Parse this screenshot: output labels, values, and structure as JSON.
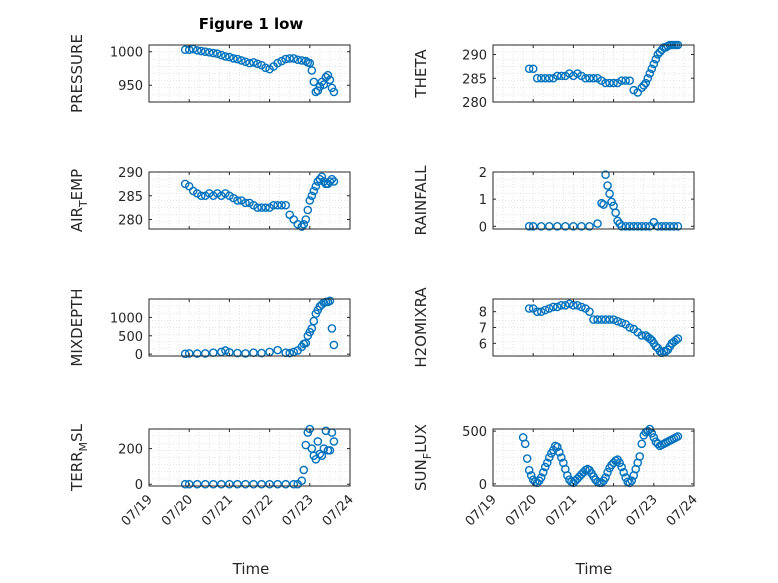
{
  "title": "Figure 1 low",
  "marker_color": "#0072BD",
  "xaxis": {
    "type": "date",
    "range": [
      "07/19",
      "07/24"
    ],
    "ticks": [
      "07/19",
      "07/20",
      "07/21",
      "07/22",
      "07/23",
      "07/24"
    ],
    "label": "Time"
  },
  "chart_data": [
    {
      "type": "scatter",
      "title": "Figure 1 low",
      "ylabel": "PRESSURE",
      "ylim": [
        925,
        1010
      ],
      "yticks": [
        950,
        1000
      ],
      "x": [
        19.9,
        20.0,
        20.1,
        20.2,
        20.3,
        20.4,
        20.5,
        20.6,
        20.7,
        20.8,
        20.9,
        21.0,
        21.1,
        21.2,
        21.3,
        21.4,
        21.5,
        21.6,
        21.7,
        21.8,
        21.9,
        22.0,
        22.1,
        22.2,
        22.3,
        22.4,
        22.5,
        22.6,
        22.7,
        22.8,
        22.9,
        22.95,
        23.0,
        23.05,
        23.1,
        23.15,
        23.2,
        23.25,
        23.3,
        23.35,
        23.4,
        23.45,
        23.5,
        23.55,
        23.6
      ],
      "y": [
        1003,
        1003,
        1004,
        1002,
        1001,
        1000,
        999,
        998,
        997,
        995,
        993,
        992,
        990,
        989,
        987,
        985,
        983,
        984,
        982,
        980,
        976,
        974,
        978,
        983,
        986,
        989,
        990,
        990,
        988,
        987,
        986,
        984,
        983,
        972,
        955,
        940,
        942,
        948,
        955,
        951,
        962,
        965,
        958,
        946,
        940
      ]
    },
    {
      "type": "scatter",
      "ylabel": "THETA",
      "ylim": [
        280,
        292
      ],
      "yticks": [
        280,
        285,
        290
      ],
      "x": [
        19.9,
        20.0,
        20.1,
        20.2,
        20.3,
        20.4,
        20.5,
        20.6,
        20.7,
        20.8,
        20.9,
        21.0,
        21.1,
        21.2,
        21.3,
        21.4,
        21.5,
        21.6,
        21.7,
        21.8,
        21.9,
        22.0,
        22.1,
        22.2,
        22.3,
        22.4,
        22.5,
        22.6,
        22.7,
        22.75,
        22.8,
        22.85,
        22.9,
        22.95,
        23.0,
        23.05,
        23.1,
        23.15,
        23.2,
        23.25,
        23.3,
        23.35,
        23.4,
        23.45,
        23.5,
        23.55,
        23.6
      ],
      "y": [
        287,
        287,
        285,
        285,
        285,
        285,
        285,
        285.5,
        285.5,
        285.5,
        286,
        285.5,
        286,
        285.5,
        285,
        285,
        285,
        285,
        284.5,
        284,
        284,
        284,
        284,
        284.5,
        284.5,
        284.5,
        282.5,
        282,
        283,
        283.5,
        284,
        285,
        286,
        287,
        288,
        289,
        290,
        290.5,
        291,
        291.5,
        291.5,
        291.8,
        292,
        292,
        292,
        292,
        292
      ]
    },
    {
      "type": "scatter",
      "ylabel": "AIR_TEMP",
      "ylim": [
        278,
        290
      ],
      "yticks": [
        280,
        285,
        290
      ],
      "x": [
        19.9,
        20.0,
        20.1,
        20.2,
        20.3,
        20.4,
        20.5,
        20.6,
        20.7,
        20.8,
        20.9,
        21.0,
        21.1,
        21.2,
        21.3,
        21.4,
        21.5,
        21.6,
        21.7,
        21.8,
        21.9,
        22.0,
        22.1,
        22.2,
        22.3,
        22.4,
        22.5,
        22.6,
        22.7,
        22.8,
        22.85,
        22.9,
        22.95,
        23.0,
        23.05,
        23.1,
        23.15,
        23.2,
        23.25,
        23.3,
        23.35,
        23.4,
        23.45,
        23.5,
        23.55,
        23.6
      ],
      "y": [
        287.5,
        287,
        286,
        285.5,
        285,
        285,
        285.5,
        285,
        285.5,
        285,
        285.5,
        285,
        284.5,
        284,
        284,
        283.5,
        283.5,
        283,
        282.5,
        282.5,
        282.5,
        282.5,
        283,
        283,
        283,
        283,
        281,
        280,
        279,
        278.5,
        279,
        280,
        282,
        284,
        285,
        286,
        287,
        288,
        288.5,
        289,
        288,
        287.5,
        287.5,
        288,
        288.5,
        288
      ]
    },
    {
      "type": "scatter",
      "ylabel": "RAINFALL",
      "ylim": [
        -0.1,
        2
      ],
      "yticks": [
        0,
        1,
        2
      ],
      "x": [
        19.9,
        20.0,
        20.2,
        20.4,
        20.6,
        20.8,
        21.0,
        21.2,
        21.4,
        21.6,
        21.7,
        21.75,
        21.8,
        21.85,
        21.9,
        21.95,
        22.0,
        22.05,
        22.1,
        22.15,
        22.2,
        22.3,
        22.4,
        22.5,
        22.6,
        22.7,
        22.8,
        22.9,
        23.0,
        23.1,
        23.2,
        23.3,
        23.4,
        23.5,
        23.6
      ],
      "y": [
        0,
        0,
        0,
        0,
        0,
        0,
        0,
        0,
        0,
        0.1,
        0.85,
        0.8,
        1.9,
        1.5,
        1.2,
        0.9,
        0.75,
        0.5,
        0.2,
        0.1,
        0,
        0,
        0,
        0,
        0,
        0,
        0,
        0,
        0.15,
        0,
        0,
        0,
        0,
        0,
        0
      ]
    },
    {
      "type": "scatter",
      "ylabel": "MIXDEPTH",
      "ylim": [
        -50,
        1500
      ],
      "yticks": [
        0,
        500,
        1000
      ],
      "x": [
        19.9,
        20.0,
        20.2,
        20.4,
        20.6,
        20.8,
        20.9,
        21.0,
        21.2,
        21.4,
        21.6,
        21.8,
        22.0,
        22.2,
        22.4,
        22.5,
        22.6,
        22.7,
        22.8,
        22.85,
        22.9,
        22.95,
        23.0,
        23.05,
        23.1,
        23.15,
        23.2,
        23.25,
        23.3,
        23.35,
        23.4,
        23.45,
        23.5,
        23.55,
        23.6
      ],
      "y": [
        10,
        20,
        15,
        20,
        40,
        60,
        100,
        50,
        30,
        20,
        40,
        30,
        60,
        110,
        40,
        30,
        60,
        100,
        200,
        280,
        300,
        500,
        600,
        700,
        900,
        1100,
        1200,
        1300,
        1350,
        1400,
        1420,
        1420,
        1450,
        700,
        250
      ]
    },
    {
      "type": "scatter",
      "ylabel": "H2OMIXRA",
      "ylim": [
        5.2,
        8.8
      ],
      "yticks": [
        6,
        7,
        8
      ],
      "x": [
        19.9,
        20.0,
        20.1,
        20.2,
        20.3,
        20.4,
        20.5,
        20.6,
        20.7,
        20.8,
        20.9,
        21.0,
        21.1,
        21.2,
        21.3,
        21.4,
        21.5,
        21.6,
        21.7,
        21.8,
        21.9,
        22.0,
        22.1,
        22.2,
        22.3,
        22.4,
        22.5,
        22.6,
        22.7,
        22.8,
        22.85,
        22.9,
        22.95,
        23.0,
        23.05,
        23.1,
        23.15,
        23.2,
        23.25,
        23.3,
        23.35,
        23.4,
        23.45,
        23.5,
        23.55,
        23.6
      ],
      "y": [
        8.2,
        8.2,
        8.0,
        8.0,
        8.1,
        8.2,
        8.3,
        8.3,
        8.4,
        8.4,
        8.5,
        8.4,
        8.4,
        8.3,
        8.2,
        8.0,
        7.5,
        7.5,
        7.5,
        7.5,
        7.5,
        7.5,
        7.4,
        7.3,
        7.2,
        7.0,
        6.9,
        6.7,
        6.5,
        6.5,
        6.4,
        6.3,
        6.2,
        6.0,
        5.8,
        5.7,
        5.5,
        5.4,
        5.5,
        5.5,
        5.6,
        5.8,
        6.0,
        6.1,
        6.2,
        6.3
      ]
    },
    {
      "type": "scatter",
      "ylabel": "TERR_MSL",
      "ylim": [
        -10,
        310
      ],
      "yticks": [
        0,
        200
      ],
      "x": [
        19.9,
        20.0,
        20.2,
        20.4,
        20.6,
        20.8,
        21.0,
        21.2,
        21.4,
        21.6,
        21.8,
        22.0,
        22.2,
        22.4,
        22.6,
        22.7,
        22.8,
        22.85,
        22.9,
        22.95,
        23.0,
        23.05,
        23.1,
        23.15,
        23.2,
        23.25,
        23.3,
        23.35,
        23.4,
        23.45,
        23.5,
        23.55,
        23.6
      ],
      "y": [
        0,
        0,
        0,
        0,
        0,
        0,
        0,
        0,
        0,
        0,
        0,
        0,
        0,
        0,
        0,
        0,
        20,
        80,
        220,
        290,
        310,
        200,
        160,
        140,
        240,
        170,
        160,
        200,
        300,
        190,
        190,
        290,
        240
      ]
    },
    {
      "type": "scatter",
      "ylabel": "SUN_FLUX",
      "ylim": [
        -20,
        520
      ],
      "yticks": [
        0,
        500
      ],
      "x": [
        19.75,
        19.8,
        19.85,
        19.9,
        19.95,
        20.0,
        20.05,
        20.1,
        20.15,
        20.2,
        20.25,
        20.3,
        20.35,
        20.4,
        20.45,
        20.5,
        20.55,
        20.6,
        20.65,
        20.7,
        20.75,
        20.8,
        20.85,
        20.9,
        20.95,
        21.0,
        21.05,
        21.1,
        21.15,
        21.2,
        21.25,
        21.3,
        21.35,
        21.4,
        21.45,
        21.5,
        21.55,
        21.6,
        21.65,
        21.7,
        21.75,
        21.8,
        21.85,
        21.9,
        21.95,
        22.0,
        22.05,
        22.1,
        22.15,
        22.2,
        22.25,
        22.3,
        22.35,
        22.4,
        22.45,
        22.5,
        22.55,
        22.6,
        22.65,
        22.7,
        22.75,
        22.8,
        22.85,
        22.9,
        22.95,
        23.0,
        23.05,
        23.1,
        23.15,
        23.2,
        23.25,
        23.3,
        23.35,
        23.4,
        23.45,
        23.5,
        23.55,
        23.6
      ],
      "y": [
        440,
        380,
        240,
        130,
        80,
        40,
        20,
        10,
        30,
        60,
        110,
        160,
        200,
        250,
        290,
        320,
        360,
        350,
        300,
        250,
        200,
        140,
        80,
        40,
        20,
        10,
        30,
        50,
        70,
        90,
        110,
        130,
        140,
        130,
        100,
        70,
        40,
        20,
        10,
        10,
        30,
        60,
        110,
        150,
        180,
        200,
        220,
        230,
        200,
        160,
        110,
        60,
        20,
        10,
        30,
        80,
        140,
        200,
        260,
        380,
        460,
        490,
        500,
        520,
        480,
        440,
        400,
        380,
        360,
        370,
        380,
        390,
        400,
        410,
        420,
        430,
        440,
        450
      ]
    }
  ]
}
